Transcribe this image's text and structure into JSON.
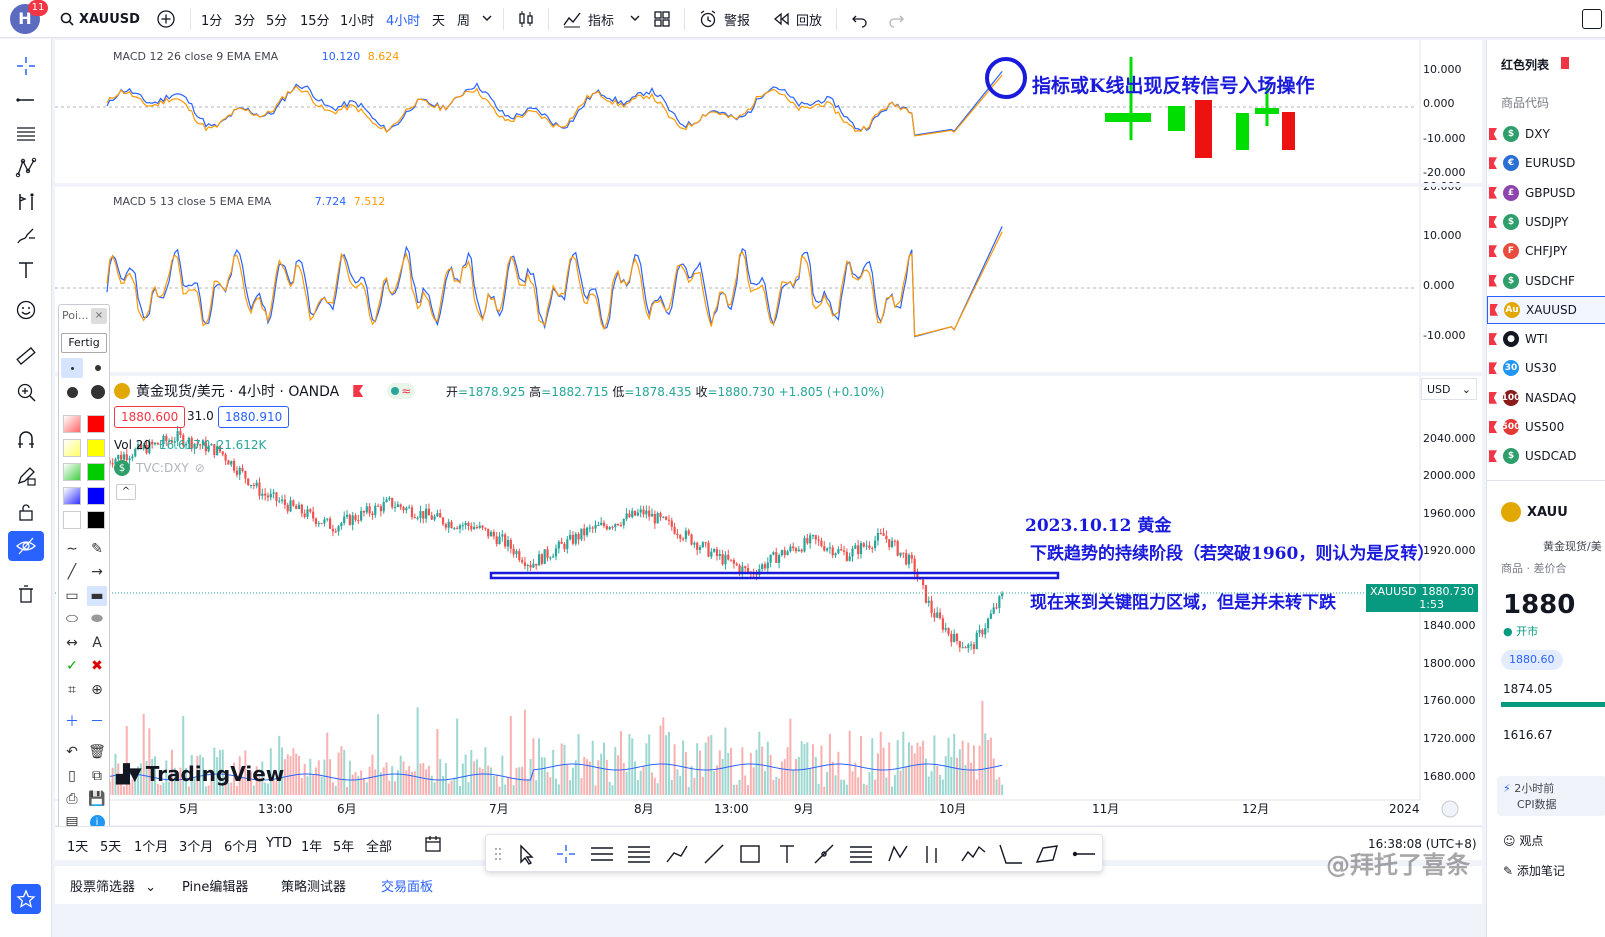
{
  "header": {
    "avatar_letter": "H",
    "notifications": "11",
    "symbol": "XAUUSD",
    "timeframes": [
      "1分",
      "3分",
      "5分",
      "15分",
      "1小时",
      "4小时",
      "天",
      "周"
    ],
    "active_timeframe": "4小时",
    "indicators_label": "指标",
    "alert_label": "警报",
    "replay_label": "回放"
  },
  "pane1": {
    "legend_name": "MACD 12 26 close 9 EMA EMA",
    "v1": "10.120",
    "v2": "8.624",
    "axis": [
      "10.000",
      "0.000",
      "-10.000",
      "-20.000"
    ]
  },
  "pane2": {
    "legend_name": "MACD 5 13 close 5 EMA EMA",
    "v1": "7.724",
    "v2": "7.512",
    "axis": [
      "20.000",
      "10.000",
      "0.000",
      "-10.000"
    ]
  },
  "main": {
    "title": "黄金现货/美元 · 4小时 · OANDA",
    "ohlc": {
      "o_label": "开",
      "o": "=1878.925",
      "h_label": "高",
      "h": "=1882.715",
      "l_label": "低",
      "l": "=1878.435",
      "c_label": "收",
      "c": "=1880.730",
      "chg": "+1.805 (+0.10%)"
    },
    "bid": "1880.600",
    "spread": "31.0",
    "ask": "1880.910",
    "vol_label": "Vol 20",
    "vol1": "16.617K",
    "vol2": "21.612K",
    "compare_symbol": "TVC:DXY",
    "currency": "USD",
    "axis": [
      "2040.000",
      "2000.000",
      "1960.000",
      "1920.000",
      "1880.000",
      "1840.000",
      "1800.000",
      "1760.000",
      "1720.000",
      "1680.000"
    ],
    "price_tag_symbol": "XAUUSD",
    "price_tag_value": "1880.730",
    "price_tag_time": "1:53",
    "watermark": "TradingView"
  },
  "time_axis": [
    "5月",
    "13:00",
    "6月",
    "7月",
    "8月",
    "13:00",
    "9月",
    "10月",
    "11月",
    "12月",
    "2024"
  ],
  "annotations": {
    "top_right": "指标或K线出现反转信号入场操作",
    "line1": "2023.10.12 黄金",
    "line2": "下跌趋势的持续阶段（若突破1960，则认为是反转）",
    "line3": "现在来到关键阻力区域，但是并未转下跌"
  },
  "float_toolbar": {
    "title": "Poi...",
    "done_button": "Fertig"
  },
  "bottom": {
    "ranges": [
      "1天",
      "5天",
      "1个月",
      "3个月",
      "6个月",
      "YTD",
      "1年",
      "5年",
      "全部"
    ],
    "clock": "16:38:08 (UTC+8)",
    "tabs": [
      "股票筛选器",
      "Pine编辑器",
      "策略测试器",
      "交易面板"
    ],
    "active_tab": "交易面板"
  },
  "watchlist": {
    "title": "红色列表",
    "col_header": "商品代码",
    "items": [
      {
        "sym": "DXY",
        "icon_text": "$",
        "color": "#2e9e6b"
      },
      {
        "sym": "EURUSD",
        "icon_text": "€",
        "color": "#2a6fd6"
      },
      {
        "sym": "GBPUSD",
        "icon_text": "£",
        "color": "#8e44ad"
      },
      {
        "sym": "USDJPY",
        "icon_text": "$",
        "color": "#2e9e6b"
      },
      {
        "sym": "CHFJPY",
        "icon_text": "F",
        "color": "#e74c3c"
      },
      {
        "sym": "USDCHF",
        "icon_text": "$",
        "color": "#2e9e6b"
      },
      {
        "sym": "XAUUSD",
        "icon_text": "Au",
        "color": "#e0a800"
      },
      {
        "sym": "WTI",
        "icon_text": "●",
        "color": "#131722"
      },
      {
        "sym": "US30",
        "icon_text": "30",
        "color": "#2196f3"
      },
      {
        "sym": "NASDAQ",
        "icon_text": "100",
        "color": "#8b1a1a"
      },
      {
        "sym": "US500",
        "icon_text": "500",
        "color": "#e53935"
      },
      {
        "sym": "USDCAD",
        "icon_text": "$",
        "color": "#2e9e6b"
      }
    ],
    "detail_sym": "XAUU",
    "detail_desc": "黄金现货/美",
    "detail_sub": "商品 · 差价合",
    "detail_price": "1880",
    "market_status": "开市",
    "detail_bid": "1880.60",
    "detail_low": "1874.05",
    "detail_val": "1616.67",
    "news_time": "2小时前",
    "news_text": "CPI数据",
    "ideas_label": "观点",
    "add_note": "添加笔记"
  },
  "watermark_text": "@拜托了喜条",
  "colors": {
    "up": "#26a69a",
    "down": "#ef5350",
    "macd": "#2962ff",
    "signal": "#ff9800",
    "annot": "#1a1adc",
    "accent": "#2962ff"
  }
}
